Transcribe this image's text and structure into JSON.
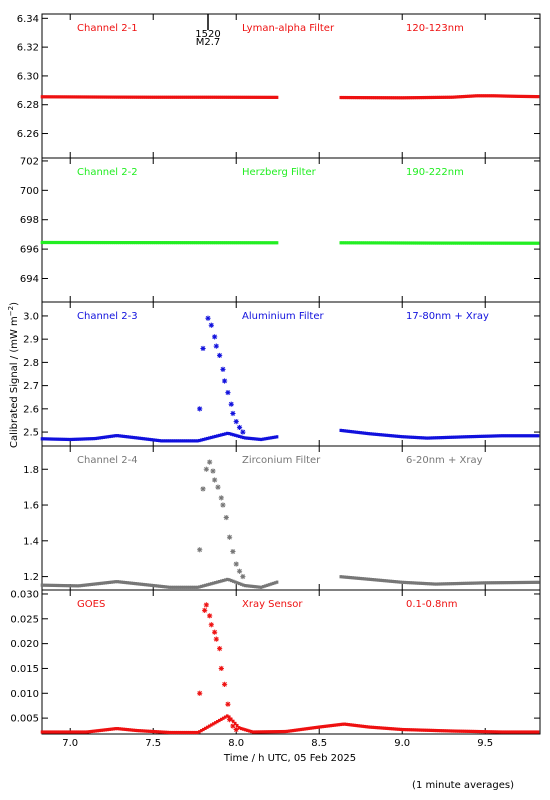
{
  "x_axis_label": "Time / h UTC, 05 Feb 2025",
  "y_axis_label": "Calibrated Signal / (mW m",
  "y_axis_label_sup": "−2",
  "y_axis_label_end": ")",
  "footnote": "(1 minute averages)",
  "flare_marker": {
    "time": "1520",
    "class": "M2.7",
    "x": 7.83
  },
  "chart_data": {
    "type": "scatter",
    "xlim": [
      6.83,
      9.83
    ],
    "x_ticks": [
      "7.0",
      "7.5",
      "8.0",
      "8.5",
      "9.0",
      "9.5"
    ],
    "x_tick_values": [
      7.0,
      7.5,
      8.0,
      8.5,
      9.0,
      9.5
    ],
    "grid": false,
    "panels": [
      {
        "id": "ch21",
        "labels": [
          "Channel 2-1",
          "Lyman-alpha Filter",
          "120-123nm"
        ],
        "color": "#ee1111",
        "ylim": [
          6.243,
          6.343
        ],
        "y_ticks": [
          "6.26",
          "6.28",
          "6.30",
          "6.32",
          "6.34"
        ],
        "y_tick_values": [
          6.26,
          6.28,
          6.3,
          6.32,
          6.34
        ],
        "baseline": [
          [
            6.83,
            6.2855
          ],
          [
            7.25,
            6.2853
          ],
          [
            7.5,
            6.2852
          ],
          [
            7.85,
            6.2852
          ],
          [
            8.25,
            6.2851
          ],
          [
            8.62,
            6.285
          ],
          [
            9.0,
            6.2848
          ],
          [
            9.3,
            6.2852
          ],
          [
            9.45,
            6.2862
          ],
          [
            9.55,
            6.2862
          ],
          [
            9.7,
            6.2858
          ],
          [
            9.83,
            6.2856
          ]
        ],
        "gap": [
          8.25,
          8.62
        ],
        "flare_points": []
      },
      {
        "id": "ch22",
        "labels": [
          "Channel 2-2",
          "Herzberg Filter",
          "190-222nm"
        ],
        "color": "#22ee22",
        "ylim": [
          692.4,
          702.2
        ],
        "y_ticks": [
          "694",
          "696",
          "698",
          "700",
          "702"
        ],
        "y_tick_values": [
          694,
          696,
          698,
          700,
          702
        ],
        "baseline": [
          [
            6.83,
            696.45
          ],
          [
            7.5,
            696.44
          ],
          [
            8.25,
            696.43
          ],
          [
            8.62,
            696.43
          ],
          [
            9.2,
            696.41
          ],
          [
            9.83,
            696.4
          ]
        ],
        "gap": [
          8.25,
          8.62
        ],
        "flare_points": []
      },
      {
        "id": "ch23",
        "labels": [
          "Channel 2-3",
          "Aluminium Filter",
          "17-80nm + Xray"
        ],
        "color": "#1111dd",
        "ylim": [
          2.44,
          3.06
        ],
        "y_ticks": [
          "2.5",
          "2.6",
          "2.7",
          "2.8",
          "2.9",
          "3.0"
        ],
        "y_tick_values": [
          2.5,
          2.6,
          2.7,
          2.8,
          2.9,
          3.0
        ],
        "baseline": [
          [
            6.83,
            2.471
          ],
          [
            7.0,
            2.468
          ],
          [
            7.15,
            2.472
          ],
          [
            7.28,
            2.485
          ],
          [
            7.4,
            2.475
          ],
          [
            7.55,
            2.462
          ],
          [
            7.77,
            2.462
          ],
          [
            7.95,
            2.495
          ],
          [
            8.05,
            2.475
          ],
          [
            8.15,
            2.468
          ],
          [
            8.25,
            2.48
          ],
          [
            8.62,
            2.508
          ],
          [
            8.8,
            2.493
          ],
          [
            9.0,
            2.48
          ],
          [
            9.15,
            2.474
          ],
          [
            9.4,
            2.48
          ],
          [
            9.6,
            2.484
          ],
          [
            9.83,
            2.484
          ]
        ],
        "gap": [
          8.25,
          8.62
        ],
        "flare_points": [
          [
            7.78,
            2.6
          ],
          [
            7.8,
            2.86
          ],
          [
            7.83,
            2.99
          ],
          [
            7.85,
            2.96
          ],
          [
            7.87,
            2.91
          ],
          [
            7.88,
            2.87
          ],
          [
            7.9,
            2.83
          ],
          [
            7.92,
            2.77
          ],
          [
            7.93,
            2.72
          ],
          [
            7.95,
            2.67
          ],
          [
            7.97,
            2.62
          ],
          [
            7.98,
            2.58
          ],
          [
            8.0,
            2.545
          ],
          [
            8.02,
            2.52
          ],
          [
            8.04,
            2.5
          ]
        ]
      },
      {
        "id": "ch24",
        "labels": [
          "Channel 2-4",
          "Zirconium Filter",
          "6-20nm + Xray"
        ],
        "color": "#777777",
        "ylim": [
          1.125,
          1.93
        ],
        "y_ticks": [
          "1.2",
          "1.4",
          "1.6",
          "1.8"
        ],
        "y_tick_values": [
          1.2,
          1.4,
          1.6,
          1.8
        ],
        "baseline": [
          [
            6.83,
            1.152
          ],
          [
            7.05,
            1.148
          ],
          [
            7.28,
            1.172
          ],
          [
            7.45,
            1.155
          ],
          [
            7.6,
            1.14
          ],
          [
            7.77,
            1.14
          ],
          [
            7.95,
            1.185
          ],
          [
            8.05,
            1.15
          ],
          [
            8.15,
            1.14
          ],
          [
            8.25,
            1.17
          ],
          [
            8.62,
            1.2
          ],
          [
            8.8,
            1.185
          ],
          [
            9.0,
            1.168
          ],
          [
            9.2,
            1.158
          ],
          [
            9.5,
            1.165
          ],
          [
            9.83,
            1.168
          ]
        ],
        "gap": [
          8.25,
          8.62
        ],
        "flare_points": [
          [
            7.78,
            1.35
          ],
          [
            7.8,
            1.69
          ],
          [
            7.82,
            1.8
          ],
          [
            7.84,
            1.84
          ],
          [
            7.86,
            1.79
          ],
          [
            7.87,
            1.74
          ],
          [
            7.89,
            1.7
          ],
          [
            7.91,
            1.64
          ],
          [
            7.92,
            1.6
          ],
          [
            7.94,
            1.53
          ],
          [
            7.96,
            1.42
          ],
          [
            7.98,
            1.34
          ],
          [
            8.0,
            1.27
          ],
          [
            8.02,
            1.23
          ],
          [
            8.04,
            1.2
          ]
        ]
      },
      {
        "id": "goes",
        "labels": [
          "GOES",
          "Xray Sensor",
          "0.1-0.8nm"
        ],
        "color": "#ee1111",
        "ylim": [
          0.0018,
          0.0308
        ],
        "y_ticks": [
          "0.005",
          "0.010",
          "0.015",
          "0.020",
          "0.025",
          "0.030"
        ],
        "y_tick_values": [
          0.005,
          0.01,
          0.015,
          0.02,
          0.025,
          0.03
        ],
        "baseline": [
          [
            6.83,
            0.0022
          ],
          [
            7.1,
            0.0022
          ],
          [
            7.28,
            0.0029
          ],
          [
            7.4,
            0.0025
          ],
          [
            7.6,
            0.0021
          ],
          [
            7.77,
            0.0021
          ],
          [
            7.95,
            0.0055
          ],
          [
            8.02,
            0.003
          ],
          [
            8.1,
            0.0022
          ],
          [
            8.3,
            0.0023
          ],
          [
            8.5,
            0.0032
          ],
          [
            8.65,
            0.0038
          ],
          [
            8.8,
            0.0032
          ],
          [
            9.0,
            0.0027
          ],
          [
            9.3,
            0.0024
          ],
          [
            9.6,
            0.0022
          ],
          [
            9.83,
            0.0022
          ]
        ],
        "gap": null,
        "flare_points": [
          [
            7.78,
            0.01
          ],
          [
            7.81,
            0.0267
          ],
          [
            7.82,
            0.0278
          ],
          [
            7.84,
            0.0256
          ],
          [
            7.85,
            0.0238
          ],
          [
            7.87,
            0.0223
          ],
          [
            7.88,
            0.0209
          ],
          [
            7.9,
            0.019
          ],
          [
            7.91,
            0.015
          ],
          [
            7.93,
            0.0118
          ],
          [
            7.95,
            0.0078
          ],
          [
            7.96,
            0.0047
          ],
          [
            7.98,
            0.0034
          ],
          [
            8.0,
            0.0027
          ]
        ]
      }
    ]
  }
}
